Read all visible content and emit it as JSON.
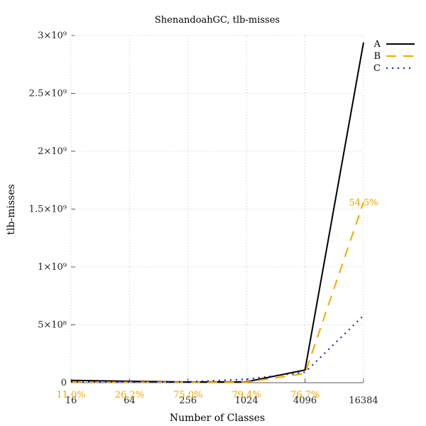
{
  "chart_data": {
    "type": "line",
    "title": "ShenandoahGC, tlb-misses",
    "xlabel": "Number of Classes",
    "ylabel": "tlb-misses",
    "categories": [
      "16",
      "64",
      "256",
      "1024",
      "4096",
      "16384"
    ],
    "ylim": [
      0,
      3000000000
    ],
    "y_ticks": [
      {
        "value": 0,
        "label": "0"
      },
      {
        "value": 500000000,
        "label": "5×10⁸"
      },
      {
        "value": 1000000000,
        "label": "1×10⁹"
      },
      {
        "value": 1500000000,
        "label": "1.5×10⁹"
      },
      {
        "value": 2000000000,
        "label": "2×10⁹"
      },
      {
        "value": 2500000000,
        "label": "2.5×10⁹"
      },
      {
        "value": 3000000000,
        "label": "3×10⁹"
      }
    ],
    "grid": true,
    "legend_position": "top-right",
    "series": [
      {
        "name": "A",
        "color": "#000000",
        "style": "solid",
        "values": [
          20000000,
          12000000,
          6000000,
          8000000,
          110000000,
          2940000000
        ]
      },
      {
        "name": "B",
        "color": "#f0a800",
        "style": "dashed",
        "values": [
          5000000,
          4000000,
          4000000,
          5000000,
          80000000,
          1560000000
        ]
      },
      {
        "name": "C",
        "color": "#1010d0",
        "style": "dotted",
        "values": [
          8000000,
          7000000,
          7000000,
          30000000,
          90000000,
          580000000
        ]
      }
    ],
    "annotations": [
      {
        "category": "16",
        "label": "11.0%"
      },
      {
        "category": "64",
        "label": "26.2%"
      },
      {
        "category": "256",
        "label": "75.0%"
      },
      {
        "category": "1024",
        "label": "79.4%"
      },
      {
        "category": "4096",
        "label": "76.7%"
      },
      {
        "category": "16384",
        "label": "54.5%"
      }
    ]
  }
}
